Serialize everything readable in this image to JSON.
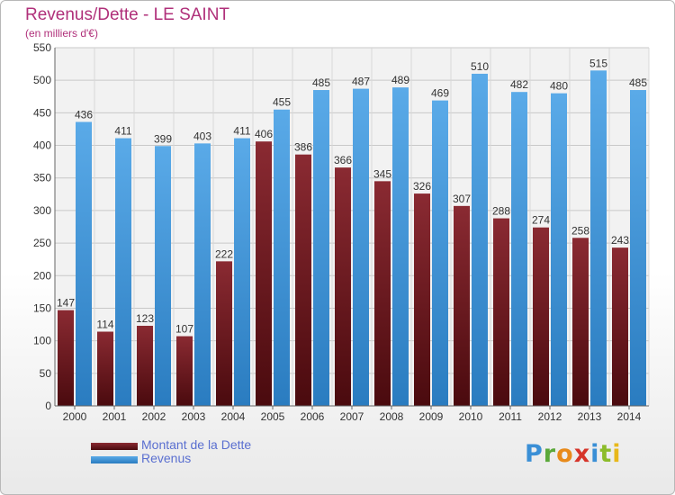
{
  "chart_data": {
    "type": "bar",
    "title": "Revenus/Dette - LE SAINT",
    "subtitle": "(en milliers d'€)",
    "categories": [
      "2000",
      "2001",
      "2002",
      "2003",
      "2004",
      "2005",
      "2006",
      "2007",
      "2008",
      "2009",
      "2010",
      "2011",
      "2012",
      "2013",
      "2014"
    ],
    "series": [
      {
        "name": "Montant de la Dette",
        "color": "#7a1f24",
        "values": [
          147,
          114,
          123,
          107,
          222,
          406,
          386,
          366,
          345,
          326,
          307,
          288,
          274,
          258,
          243
        ]
      },
      {
        "name": "Revenus",
        "color": "#4aa0e0",
        "values": [
          436,
          411,
          399,
          403,
          411,
          455,
          485,
          487,
          489,
          469,
          510,
          482,
          480,
          515,
          485
        ]
      }
    ],
    "ylim": [
      0,
      550
    ],
    "yticks": [
      0,
      50,
      100,
      150,
      200,
      250,
      300,
      350,
      400,
      450,
      500,
      550
    ],
    "grid": true,
    "legend_position": "bottom-left"
  },
  "logo": {
    "letters": [
      "P",
      "r",
      "o",
      "x",
      "i",
      "t",
      "i"
    ]
  }
}
